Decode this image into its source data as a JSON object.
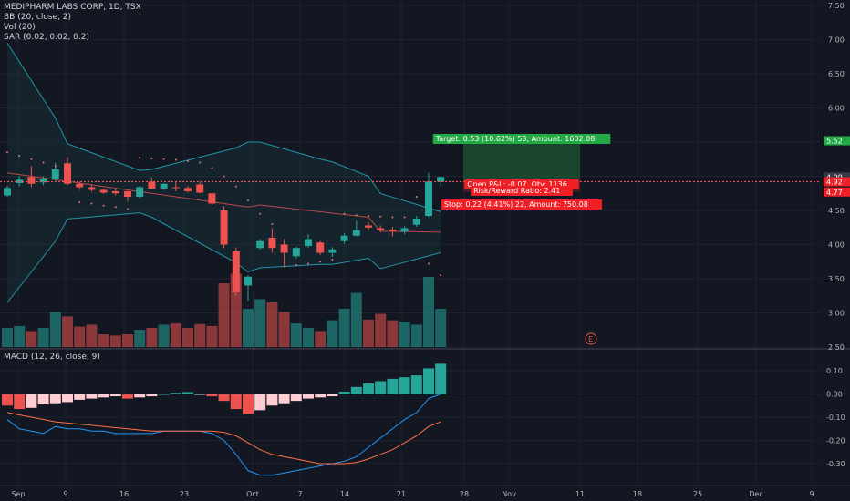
{
  "legend": {
    "main": "MEDIPHARM LABS CORP, 1D, TSX",
    "bb": "BB (20, close, 2)",
    "vol": "Vol (20)",
    "sar": "SAR (0.02, 0.02, 0.2)",
    "macd": "MACD (12, 26, close, 9)"
  },
  "price_axis": {
    "ticks": [
      "7.50",
      "7.00",
      "6.50",
      "6.00",
      "5.50",
      "5.00",
      "4.50",
      "4.00",
      "3.50",
      "3.00",
      "2.50"
    ],
    "tags": {
      "target": "5.52",
      "current": "4.99",
      "entry": "4.92",
      "stop": "4.77"
    }
  },
  "macd_axis": {
    "ticks": [
      "0.10",
      "0.00",
      "-0.10",
      "-0.20",
      "-0.30"
    ]
  },
  "x_axis": {
    "ticks": [
      "Sep",
      "9",
      "16",
      "23",
      "Oct",
      "7",
      "14",
      "21",
      "28",
      "Nov",
      "11",
      "18",
      "25",
      "Dec",
      "9"
    ]
  },
  "position": {
    "target_label": "Target: 0.53 (10.62%) 53, Amount: 1602.08",
    "pnl_label": "Open P&L: -0.07, Qty: 1136",
    "rr_label": "Risk/Reward Ratio: 2.41",
    "stop_label": "Stop: 0.22 (4.41%) 22, Amount: 750.08"
  },
  "event_marker": "E",
  "colors": {
    "up": "#26a69a",
    "down": "#ef5350",
    "bb": "#2196a6",
    "sar": "#e57373",
    "macd_line": "#2196f3",
    "signal_line": "#ff7043",
    "target_tag": "#22ab45",
    "stop_tag": "#ef1f26"
  },
  "chart_data": {
    "type": "candlestick",
    "candles": [
      {
        "o": 4.72,
        "h": 4.86,
        "l": 4.7,
        "c": 4.83
      },
      {
        "o": 4.9,
        "h": 5.0,
        "l": 4.85,
        "c": 4.95
      },
      {
        "o": 4.99,
        "h": 5.15,
        "l": 4.84,
        "c": 4.89
      },
      {
        "o": 4.91,
        "h": 5.0,
        "l": 4.87,
        "c": 4.96
      },
      {
        "o": 4.96,
        "h": 5.2,
        "l": 4.93,
        "c": 5.1
      },
      {
        "o": 5.19,
        "h": 5.28,
        "l": 4.87,
        "c": 4.89
      },
      {
        "o": 4.89,
        "h": 4.92,
        "l": 4.8,
        "c": 4.84
      },
      {
        "o": 4.84,
        "h": 4.88,
        "l": 4.77,
        "c": 4.8
      },
      {
        "o": 4.8,
        "h": 4.82,
        "l": 4.74,
        "c": 4.76
      },
      {
        "o": 4.78,
        "h": 4.82,
        "l": 4.72,
        "c": 4.75
      },
      {
        "o": 4.78,
        "h": 4.79,
        "l": 4.63,
        "c": 4.7
      },
      {
        "o": 4.7,
        "h": 4.86,
        "l": 4.68,
        "c": 4.84
      },
      {
        "o": 4.92,
        "h": 4.98,
        "l": 4.81,
        "c": 4.82
      },
      {
        "o": 4.82,
        "h": 4.9,
        "l": 4.8,
        "c": 4.89
      },
      {
        "o": 4.84,
        "h": 4.92,
        "l": 4.78,
        "c": 4.83
      },
      {
        "o": 4.83,
        "h": 4.86,
        "l": 4.76,
        "c": 4.78
      },
      {
        "o": 4.88,
        "h": 4.92,
        "l": 4.75,
        "c": 4.76
      },
      {
        "o": 4.75,
        "h": 4.76,
        "l": 4.58,
        "c": 4.6
      },
      {
        "o": 4.5,
        "h": 4.56,
        "l": 3.95,
        "c": 4.0
      },
      {
        "o": 3.9,
        "h": 3.96,
        "l": 3.25,
        "c": 3.3
      },
      {
        "o": 3.4,
        "h": 3.55,
        "l": 3.18,
        "c": 3.53
      },
      {
        "o": 3.95,
        "h": 4.08,
        "l": 3.93,
        "c": 4.05
      },
      {
        "o": 4.1,
        "h": 4.24,
        "l": 3.88,
        "c": 3.95
      },
      {
        "o": 4.0,
        "h": 4.08,
        "l": 3.7,
        "c": 3.88
      },
      {
        "o": 3.83,
        "h": 3.97,
        "l": 3.8,
        "c": 3.95
      },
      {
        "o": 3.98,
        "h": 4.15,
        "l": 3.95,
        "c": 4.08
      },
      {
        "o": 4.03,
        "h": 4.05,
        "l": 3.85,
        "c": 3.88
      },
      {
        "o": 3.88,
        "h": 3.96,
        "l": 3.82,
        "c": 3.93
      },
      {
        "o": 4.05,
        "h": 4.17,
        "l": 4.01,
        "c": 4.13
      },
      {
        "o": 4.13,
        "h": 4.35,
        "l": 4.12,
        "c": 4.21
      },
      {
        "o": 4.28,
        "h": 4.33,
        "l": 4.2,
        "c": 4.25
      },
      {
        "o": 4.24,
        "h": 4.28,
        "l": 4.18,
        "c": 4.21
      },
      {
        "o": 4.22,
        "h": 4.26,
        "l": 4.12,
        "c": 4.2
      },
      {
        "o": 4.19,
        "h": 4.27,
        "l": 4.15,
        "c": 4.24
      },
      {
        "o": 4.29,
        "h": 4.42,
        "l": 4.26,
        "c": 4.38
      },
      {
        "o": 4.42,
        "h": 5.05,
        "l": 4.4,
        "c": 4.92
      },
      {
        "o": 4.92,
        "h": 5.0,
        "l": 4.85,
        "c": 4.99
      }
    ],
    "volume": [
      0.3,
      0.33,
      0.25,
      0.3,
      0.55,
      0.48,
      0.32,
      0.35,
      0.2,
      0.18,
      0.2,
      0.27,
      0.3,
      0.35,
      0.37,
      0.3,
      0.36,
      0.33,
      1.0,
      1.15,
      0.6,
      0.75,
      0.7,
      0.55,
      0.37,
      0.3,
      0.25,
      0.42,
      0.6,
      0.85,
      0.43,
      0.52,
      0.42,
      0.4,
      0.35,
      1.1,
      0.6
    ],
    "macd_hist": [
      -0.05,
      -0.065,
      -0.06,
      -0.045,
      -0.04,
      -0.035,
      -0.025,
      -0.02,
      -0.015,
      -0.01,
      -0.02,
      -0.015,
      -0.01,
      0.0,
      0.005,
      0.008,
      0.0,
      -0.01,
      -0.03,
      -0.065,
      -0.085,
      -0.07,
      -0.05,
      -0.04,
      -0.03,
      -0.02,
      -0.015,
      -0.01,
      0.01,
      0.03,
      0.045,
      0.055,
      0.065,
      0.072,
      0.08,
      0.11,
      0.13
    ],
    "macd_line": [
      -0.11,
      -0.15,
      -0.16,
      -0.17,
      -0.14,
      -0.15,
      -0.15,
      -0.16,
      -0.16,
      -0.17,
      -0.17,
      -0.17,
      -0.17,
      -0.16,
      -0.16,
      -0.16,
      -0.16,
      -0.17,
      -0.2,
      -0.26,
      -0.33,
      -0.35,
      -0.35,
      -0.34,
      -0.33,
      -0.32,
      -0.31,
      -0.3,
      -0.29,
      -0.27,
      -0.23,
      -0.19,
      -0.15,
      -0.11,
      -0.08,
      -0.02,
      0.0
    ],
    "signal_line": [
      -0.08,
      -0.09,
      -0.1,
      -0.11,
      -0.12,
      -0.125,
      -0.13,
      -0.135,
      -0.14,
      -0.145,
      -0.15,
      -0.155,
      -0.16,
      -0.16,
      -0.16,
      -0.16,
      -0.16,
      -0.16,
      -0.165,
      -0.18,
      -0.21,
      -0.24,
      -0.26,
      -0.27,
      -0.28,
      -0.29,
      -0.3,
      -0.3,
      -0.3,
      -0.295,
      -0.28,
      -0.26,
      -0.24,
      -0.21,
      -0.18,
      -0.14,
      -0.12
    ]
  }
}
